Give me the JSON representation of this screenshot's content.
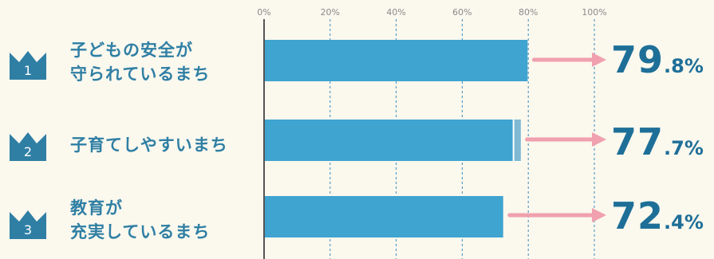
{
  "colors": {
    "bar": "#3fa4d0",
    "accent": "#1e6f98",
    "arrow": "#f0a0ae",
    "label": "#2f7fa4",
    "axis": "#555555",
    "grid": "#3a8bbd",
    "tick": "#8a8a8a",
    "background": "#fbf8ee"
  },
  "chart_data": {
    "type": "bar",
    "orientation": "horizontal",
    "xlim": [
      0,
      100
    ],
    "ticks": [
      {
        "value": 0,
        "label": "0%"
      },
      {
        "value": 20,
        "label": "20%"
      },
      {
        "value": 40,
        "label": "40%"
      },
      {
        "value": 60,
        "label": "60%"
      },
      {
        "value": 80,
        "label": "80%"
      },
      {
        "value": 100,
        "label": "100%"
      }
    ],
    "grid": true,
    "bars": [
      {
        "rank": "1",
        "label_lines": [
          "子どもの安全が",
          "守られているまち"
        ],
        "value": 79.8,
        "value_int": "79",
        "value_dec": ".8%"
      },
      {
        "rank": "2",
        "label_lines": [
          "子育てしやすいまち"
        ],
        "value": 77.7,
        "value_int": "77",
        "value_dec": ".7%"
      },
      {
        "rank": "3",
        "label_lines": [
          "教育が",
          "充実しているまち"
        ],
        "value": 72.4,
        "value_int": "72",
        "value_dec": ".4%"
      }
    ]
  }
}
